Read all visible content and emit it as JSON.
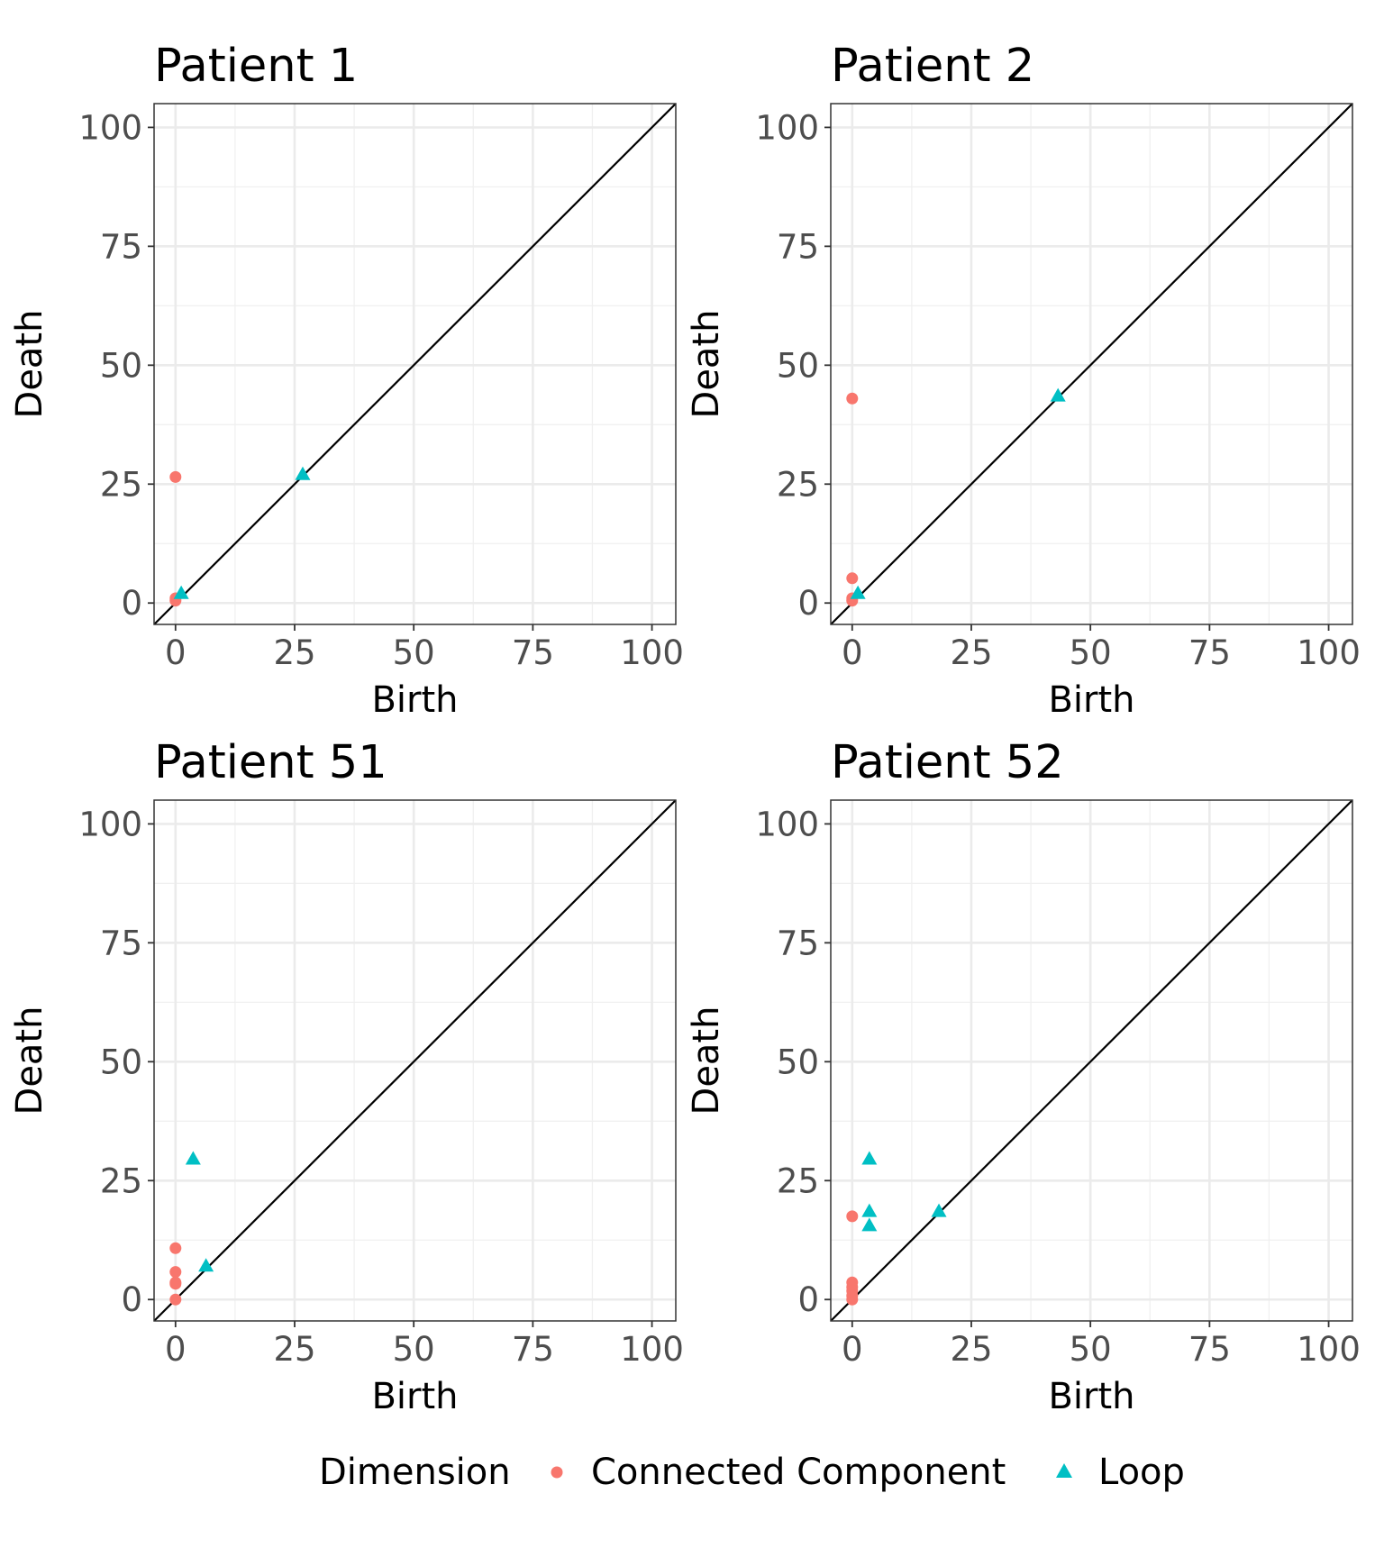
{
  "legend": {
    "title": "Dimension",
    "items": [
      {
        "label": "Connected Component",
        "shape": "circle",
        "color": "#F8766D"
      },
      {
        "label": "Loop",
        "shape": "triangle",
        "color": "#00BFC4"
      }
    ]
  },
  "chart_data": [
    {
      "type": "scatter",
      "title": "Patient 1",
      "xlabel": "Birth",
      "ylabel": "Death",
      "xlim": [
        -4.5,
        105
      ],
      "ylim": [
        -4.5,
        105
      ],
      "xticks": [
        0,
        25,
        50,
        75,
        100
      ],
      "yticks": [
        0,
        25,
        50,
        75,
        100
      ],
      "grid": true,
      "reference_line": "y = x",
      "series": [
        {
          "name": "Connected Component",
          "points": [
            [
              0,
              26.5
            ],
            [
              0,
              1
            ],
            [
              0,
              0.5
            ]
          ]
        },
        {
          "name": "Loop",
          "points": [
            [
              26.7,
              27
            ],
            [
              1.2,
              2
            ]
          ]
        }
      ]
    },
    {
      "type": "scatter",
      "title": "Patient 2",
      "xlabel": "Birth",
      "ylabel": "Death",
      "xlim": [
        -4.5,
        105
      ],
      "ylim": [
        -4.5,
        105
      ],
      "xticks": [
        0,
        25,
        50,
        75,
        100
      ],
      "yticks": [
        0,
        25,
        50,
        75,
        100
      ],
      "grid": true,
      "reference_line": "y = x",
      "series": [
        {
          "name": "Connected Component",
          "points": [
            [
              0,
              43
            ],
            [
              0,
              5.2
            ],
            [
              0,
              1
            ],
            [
              0,
              0.5
            ]
          ]
        },
        {
          "name": "Loop",
          "points": [
            [
              43.2,
              43.5
            ],
            [
              1.2,
              2
            ]
          ]
        }
      ]
    },
    {
      "type": "scatter",
      "title": "Patient 51",
      "xlabel": "Birth",
      "ylabel": "Death",
      "xlim": [
        -4.5,
        105
      ],
      "ylim": [
        -4.5,
        105
      ],
      "xticks": [
        0,
        25,
        50,
        75,
        100
      ],
      "yticks": [
        0,
        25,
        50,
        75,
        100
      ],
      "grid": true,
      "reference_line": "y = x",
      "series": [
        {
          "name": "Connected Component",
          "points": [
            [
              0,
              10.8
            ],
            [
              0,
              5.8
            ],
            [
              0,
              3.6
            ],
            [
              0,
              3.3
            ],
            [
              0,
              0
            ]
          ]
        },
        {
          "name": "Loop",
          "points": [
            [
              3.7,
              29.5
            ],
            [
              6.4,
              7
            ]
          ]
        }
      ]
    },
    {
      "type": "scatter",
      "title": "Patient 52",
      "xlabel": "Birth",
      "ylabel": "Death",
      "xlim": [
        -4.5,
        105
      ],
      "ylim": [
        -4.5,
        105
      ],
      "xticks": [
        0,
        25,
        50,
        75,
        100
      ],
      "yticks": [
        0,
        25,
        50,
        75,
        100
      ],
      "grid": true,
      "reference_line": "y = x",
      "series": [
        {
          "name": "Connected Component",
          "points": [
            [
              0,
              17.5
            ],
            [
              0,
              3.6
            ],
            [
              0,
              2.6
            ],
            [
              0,
              1.8
            ],
            [
              0,
              0.8
            ],
            [
              0,
              0
            ]
          ]
        },
        {
          "name": "Loop",
          "points": [
            [
              3.6,
              29.5
            ],
            [
              3.6,
              18.5
            ],
            [
              3.6,
              15.5
            ],
            [
              18.2,
              18.5
            ]
          ]
        }
      ]
    }
  ]
}
